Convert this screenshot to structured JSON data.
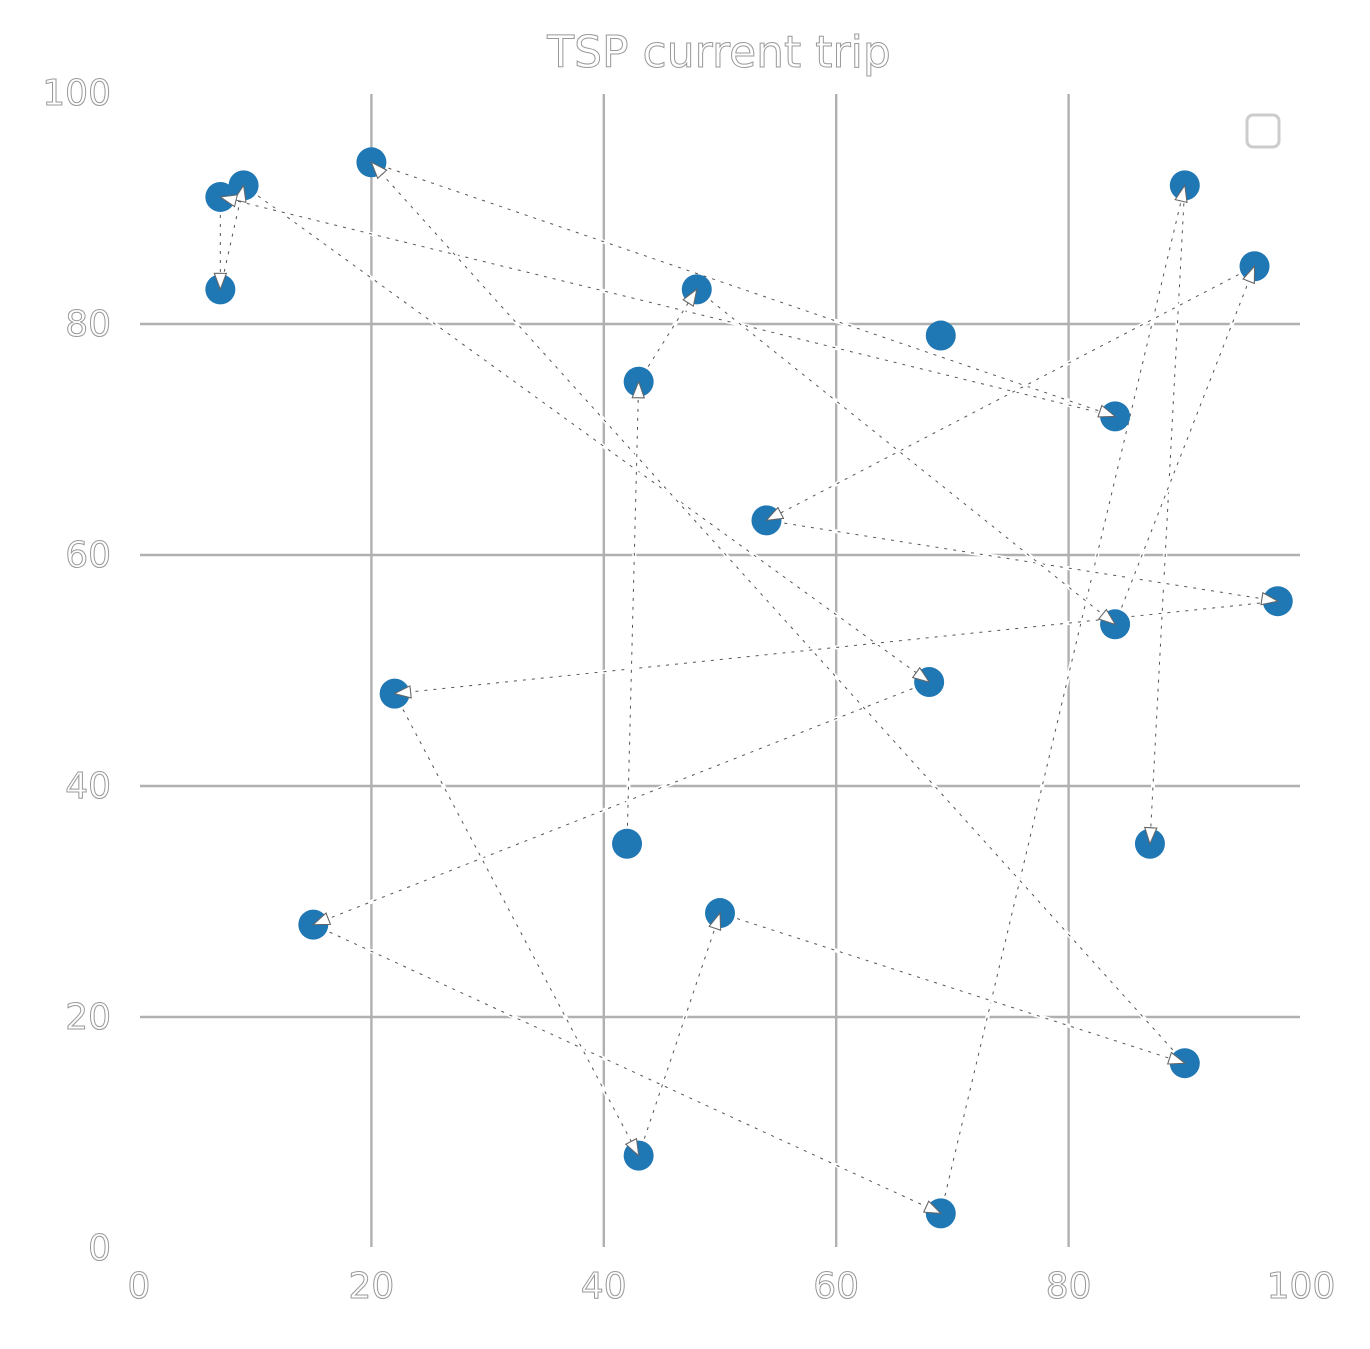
{
  "chart_data": {
    "type": "scatter",
    "title": "TSP current trip",
    "xlabel": "",
    "ylabel": "",
    "xlim": [
      0,
      100
    ],
    "ylim": [
      0,
      100
    ],
    "xticks": [
      "0",
      "20",
      "40",
      "60",
      "80",
      "100"
    ],
    "yticks": [
      "0",
      "20",
      "40",
      "60",
      "80",
      "100"
    ],
    "grid": true,
    "legend": "top-right (empty)",
    "point_color": "#1f77b4",
    "edge_color": "#ffffff",
    "points": [
      {
        "x": 7,
        "y": 91
      },
      {
        "x": 9,
        "y": 92
      },
      {
        "x": 7,
        "y": 83
      },
      {
        "x": 20,
        "y": 94
      },
      {
        "x": 48,
        "y": 83
      },
      {
        "x": 43,
        "y": 75
      },
      {
        "x": 69,
        "y": 79
      },
      {
        "x": 84,
        "y": 72
      },
      {
        "x": 90,
        "y": 92
      },
      {
        "x": 96,
        "y": 85
      },
      {
        "x": 54,
        "y": 63
      },
      {
        "x": 98,
        "y": 56
      },
      {
        "x": 84,
        "y": 54
      },
      {
        "x": 68,
        "y": 49
      },
      {
        "x": 22,
        "y": 48
      },
      {
        "x": 42,
        "y": 35
      },
      {
        "x": 87,
        "y": 35
      },
      {
        "x": 15,
        "y": 28
      },
      {
        "x": 50,
        "y": 29
      },
      {
        "x": 90,
        "y": 16
      },
      {
        "x": 43,
        "y": 8
      },
      {
        "x": 69,
        "y": 3
      }
    ],
    "route": [
      {
        "from": [
          7,
          91
        ],
        "to": [
          7,
          83
        ]
      },
      {
        "from": [
          7,
          83
        ],
        "to": [
          9,
          92
        ]
      },
      {
        "from": [
          9,
          92
        ],
        "to": [
          68,
          49
        ]
      },
      {
        "from": [
          68,
          49
        ],
        "to": [
          15,
          28
        ]
      },
      {
        "from": [
          15,
          28
        ],
        "to": [
          69,
          3
        ]
      },
      {
        "from": [
          69,
          3
        ],
        "to": [
          90,
          92
        ]
      },
      {
        "from": [
          90,
          92
        ],
        "to": [
          87,
          35
        ]
      },
      {
        "from": [
          84,
          72
        ],
        "to": [
          7,
          91
        ]
      },
      {
        "from": [
          20,
          94
        ],
        "to": [
          84,
          72
        ]
      },
      {
        "from": [
          90,
          16
        ],
        "to": [
          20,
          94
        ]
      },
      {
        "from": [
          50,
          29
        ],
        "to": [
          90,
          16
        ]
      },
      {
        "from": [
          43,
          8
        ],
        "to": [
          50,
          29
        ]
      },
      {
        "from": [
          22,
          48
        ],
        "to": [
          43,
          8
        ]
      },
      {
        "from": [
          98,
          56
        ],
        "to": [
          22,
          48
        ]
      },
      {
        "from": [
          54,
          63
        ],
        "to": [
          98,
          56
        ]
      },
      {
        "from": [
          96,
          85
        ],
        "to": [
          54,
          63
        ]
      },
      {
        "from": [
          84,
          54
        ],
        "to": [
          96,
          85
        ]
      },
      {
        "from": [
          48,
          83
        ],
        "to": [
          84,
          54
        ]
      },
      {
        "from": [
          43,
          75
        ],
        "to": [
          48,
          83
        ]
      },
      {
        "from": [
          42,
          35
        ],
        "to": [
          43,
          75
        ]
      }
    ]
  }
}
